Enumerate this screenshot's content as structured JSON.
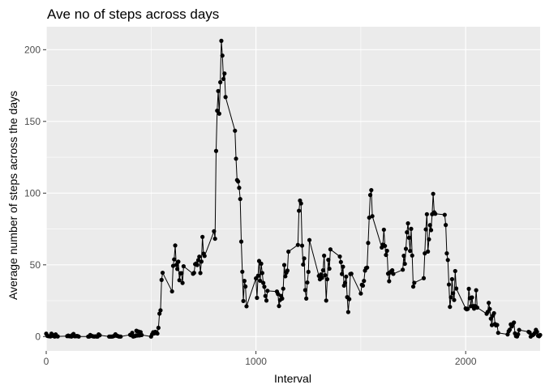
{
  "chart_data": {
    "type": "line",
    "title": "Ave no of steps across days",
    "xlabel": "Interval",
    "ylabel": "Average number of steps across the days",
    "xlim": [
      0,
      2355
    ],
    "ylim": [
      -10,
      216
    ],
    "x_ticks": [
      0,
      1000,
      2000
    ],
    "y_ticks": [
      0,
      50,
      100,
      150,
      200
    ],
    "grid": true,
    "markers": "points",
    "series": [
      {
        "color": "#000000",
        "points": [
          [
            0,
            2
          ],
          [
            5,
            0.5
          ],
          [
            10,
            0.3
          ],
          [
            15,
            0.2
          ],
          [
            20,
            0.1
          ],
          [
            25,
            2
          ],
          [
            30,
            0.5
          ],
          [
            35,
            0.9
          ],
          [
            40,
            0
          ],
          [
            45,
            1.5
          ],
          [
            50,
            0.3
          ],
          [
            55,
            0.1
          ],
          [
            100,
            0.3
          ],
          [
            105,
            0.7
          ],
          [
            110,
            0.2
          ],
          [
            115,
            0.3
          ],
          [
            120,
            0
          ],
          [
            125,
            1.1
          ],
          [
            130,
            1.8
          ],
          [
            135,
            0.2
          ],
          [
            140,
            0.2
          ],
          [
            145,
            0.4
          ],
          [
            150,
            0.3
          ],
          [
            155,
            0
          ],
          [
            200,
            0
          ],
          [
            205,
            0
          ],
          [
            210,
            1.1
          ],
          [
            215,
            0.5
          ],
          [
            220,
            0.3
          ],
          [
            225,
            0.1
          ],
          [
            230,
            0
          ],
          [
            235,
            0.2
          ],
          [
            240,
            0
          ],
          [
            245,
            0
          ],
          [
            250,
            1.5
          ],
          [
            255,
            0.9
          ],
          [
            300,
            0
          ],
          [
            305,
            0
          ],
          [
            310,
            0
          ],
          [
            315,
            0
          ],
          [
            320,
            0.2
          ],
          [
            325,
            0.6
          ],
          [
            330,
            1.6
          ],
          [
            335,
            0.6
          ],
          [
            340,
            0.5
          ],
          [
            345,
            0.1
          ],
          [
            350,
            0
          ],
          [
            355,
            0
          ],
          [
            400,
            1.2
          ],
          [
            405,
            0.9
          ],
          [
            410,
            2.6
          ],
          [
            415,
            0
          ],
          [
            420,
            0.3
          ],
          [
            425,
            0.4
          ],
          [
            430,
            4.1
          ],
          [
            435,
            0.7
          ],
          [
            440,
            3.5
          ],
          [
            445,
            0.8
          ],
          [
            450,
            3.1
          ],
          [
            455,
            1.1
          ],
          [
            500,
            0
          ],
          [
            505,
            1.6
          ],
          [
            510,
            3.0
          ],
          [
            515,
            2.2
          ],
          [
            520,
            3.3
          ],
          [
            525,
            3.0
          ],
          [
            530,
            2.1
          ],
          [
            535,
            6.1
          ],
          [
            540,
            16
          ],
          [
            545,
            18.3
          ],
          [
            550,
            39.5
          ],
          [
            555,
            44.5
          ],
          [
            600,
            31.5
          ],
          [
            605,
            49.3
          ],
          [
            610,
            53.8
          ],
          [
            615,
            63.5
          ],
          [
            620,
            50
          ],
          [
            625,
            47.1
          ],
          [
            630,
            52.2
          ],
          [
            635,
            39.3
          ],
          [
            640,
            44.1
          ],
          [
            645,
            44.2
          ],
          [
            650,
            37.4
          ],
          [
            655,
            49.0
          ],
          [
            700,
            43.8
          ],
          [
            705,
            44.4
          ],
          [
            710,
            50.5
          ],
          [
            715,
            51.0
          ],
          [
            720,
            49.9
          ],
          [
            725,
            53.3
          ],
          [
            730,
            55.7
          ],
          [
            735,
            44.3
          ],
          [
            740,
            52.3
          ],
          [
            745,
            69.5
          ],
          [
            750,
            57.8
          ],
          [
            755,
            56.2
          ],
          [
            800,
            73.4
          ],
          [
            805,
            68.2
          ],
          [
            810,
            129.4
          ],
          [
            815,
            157.5
          ],
          [
            820,
            171.2
          ],
          [
            825,
            155.4
          ],
          [
            830,
            177.3
          ],
          [
            835,
            206.2
          ],
          [
            840,
            195.9
          ],
          [
            845,
            179.6
          ],
          [
            850,
            183.4
          ],
          [
            855,
            167.0
          ],
          [
            900,
            143.5
          ],
          [
            905,
            124.0
          ],
          [
            910,
            109.1
          ],
          [
            915,
            108.1
          ],
          [
            920,
            103.7
          ],
          [
            925,
            95.9
          ],
          [
            930,
            66.2
          ],
          [
            935,
            45.2
          ],
          [
            940,
            24.8
          ],
          [
            945,
            38.8
          ],
          [
            950,
            34.9
          ],
          [
            955,
            21.1
          ],
          [
            1000,
            40.6
          ],
          [
            1005,
            27.0
          ],
          [
            1010,
            42.4
          ],
          [
            1015,
            52.7
          ],
          [
            1020,
            38.9
          ],
          [
            1025,
            50.8
          ],
          [
            1030,
            44.3
          ],
          [
            1035,
            37.4
          ],
          [
            1040,
            34.7
          ],
          [
            1045,
            28.3
          ],
          [
            1050,
            25.1
          ],
          [
            1055,
            31.9
          ],
          [
            1100,
            31.4
          ],
          [
            1105,
            29.7
          ],
          [
            1110,
            21.3
          ],
          [
            1115,
            25.5
          ],
          [
            1120,
            28.4
          ],
          [
            1125,
            26.5
          ],
          [
            1130,
            33.4
          ],
          [
            1135,
            49.9
          ],
          [
            1140,
            42.0
          ],
          [
            1145,
            44.6
          ],
          [
            1150,
            46.0
          ],
          [
            1155,
            59.2
          ],
          [
            1200,
            63.9
          ],
          [
            1205,
            87.7
          ],
          [
            1210,
            94.8
          ],
          [
            1215,
            92.8
          ],
          [
            1220,
            63.4
          ],
          [
            1225,
            50.2
          ],
          [
            1230,
            54.5
          ],
          [
            1235,
            32.4
          ],
          [
            1240,
            26.5
          ],
          [
            1245,
            37.7
          ],
          [
            1250,
            45.1
          ],
          [
            1255,
            67.3
          ],
          [
            1300,
            42.3
          ],
          [
            1305,
            39.9
          ],
          [
            1310,
            43.3
          ],
          [
            1315,
            40.98
          ],
          [
            1320,
            46.2
          ],
          [
            1325,
            56.4
          ],
          [
            1330,
            42.75
          ],
          [
            1335,
            25.1
          ],
          [
            1340,
            39.96
          ],
          [
            1345,
            53.5
          ],
          [
            1350,
            47.3
          ],
          [
            1355,
            60.8
          ],
          [
            1400,
            55.8
          ],
          [
            1405,
            51.96
          ],
          [
            1410,
            43.6
          ],
          [
            1415,
            48.7
          ],
          [
            1420,
            35.5
          ],
          [
            1425,
            37.5
          ],
          [
            1430,
            41.8
          ],
          [
            1435,
            27.5
          ],
          [
            1440,
            17.1
          ],
          [
            1445,
            26.1
          ],
          [
            1450,
            43.6
          ],
          [
            1455,
            43.8
          ],
          [
            1500,
            30.0
          ],
          [
            1505,
            36.1
          ],
          [
            1510,
            35.5
          ],
          [
            1515,
            38.8
          ],
          [
            1520,
            45.96
          ],
          [
            1525,
            47.75
          ],
          [
            1530,
            48.1
          ],
          [
            1535,
            65.3
          ],
          [
            1540,
            82.9
          ],
          [
            1545,
            98.7
          ],
          [
            1550,
            102.1
          ],
          [
            1555,
            83.96
          ],
          [
            1600,
            62.1
          ],
          [
            1605,
            64.1
          ],
          [
            1610,
            74.5
          ],
          [
            1615,
            63.2
          ],
          [
            1620,
            56.9
          ],
          [
            1625,
            59.8
          ],
          [
            1630,
            43.9
          ],
          [
            1635,
            38.6
          ],
          [
            1640,
            44.7
          ],
          [
            1645,
            45.5
          ],
          [
            1650,
            46.2
          ],
          [
            1655,
            43.7
          ],
          [
            1700,
            46.6
          ],
          [
            1705,
            56.3
          ],
          [
            1710,
            50.7
          ],
          [
            1715,
            61.2
          ],
          [
            1720,
            72.7
          ],
          [
            1725,
            78.9
          ],
          [
            1730,
            68.9
          ],
          [
            1735,
            59.7
          ],
          [
            1740,
            75.1
          ],
          [
            1745,
            56.5
          ],
          [
            1750,
            34.8
          ],
          [
            1755,
            37.5
          ],
          [
            1800,
            40.7
          ],
          [
            1805,
            58.0
          ],
          [
            1810,
            74.7
          ],
          [
            1815,
            85.3
          ],
          [
            1820,
            59.3
          ],
          [
            1825,
            67.8
          ],
          [
            1830,
            77.7
          ],
          [
            1835,
            74.2
          ],
          [
            1840,
            85.3
          ],
          [
            1845,
            99.5
          ],
          [
            1850,
            86.6
          ],
          [
            1855,
            85.6
          ],
          [
            1900,
            84.9
          ],
          [
            1905,
            77.8
          ],
          [
            1910,
            58.0
          ],
          [
            1915,
            53.4
          ],
          [
            1920,
            36.3
          ],
          [
            1925,
            20.7
          ],
          [
            1930,
            27.4
          ],
          [
            1935,
            40.0
          ],
          [
            1940,
            30.2
          ],
          [
            1945,
            25.5
          ],
          [
            1950,
            45.7
          ],
          [
            1955,
            33.5
          ],
          [
            2000,
            19.6
          ],
          [
            2005,
            19.0
          ],
          [
            2010,
            19.3
          ],
          [
            2015,
            33.3
          ],
          [
            2020,
            26.8
          ],
          [
            2025,
            21.2
          ],
          [
            2030,
            27.3
          ],
          [
            2035,
            21.3
          ],
          [
            2040,
            19.5
          ],
          [
            2045,
            21.3
          ],
          [
            2050,
            32.3
          ],
          [
            2055,
            20.2
          ],
          [
            2100,
            15.9
          ],
          [
            2105,
            17.2
          ],
          [
            2110,
            23.5
          ],
          [
            2115,
            19.2
          ],
          [
            2120,
            12.5
          ],
          [
            2125,
            8.0
          ],
          [
            2130,
            14.7
          ],
          [
            2135,
            16.3
          ],
          [
            2140,
            8.7
          ],
          [
            2145,
            7.8
          ],
          [
            2150,
            8.1
          ],
          [
            2155,
            2.6
          ],
          [
            2200,
            1.5
          ],
          [
            2205,
            3.7
          ],
          [
            2210,
            4.8
          ],
          [
            2215,
            8.5
          ],
          [
            2220,
            7.1
          ],
          [
            2225,
            8.7
          ],
          [
            2230,
            9.8
          ],
          [
            2235,
            2.2
          ],
          [
            2240,
            0.3
          ],
          [
            2245,
            0.1
          ],
          [
            2250,
            1.6
          ],
          [
            2255,
            4.6
          ],
          [
            2300,
            3.3
          ],
          [
            2305,
            2.8
          ],
          [
            2310,
            0
          ],
          [
            2315,
            0.8
          ],
          [
            2320,
            1.0
          ],
          [
            2325,
            1.6
          ],
          [
            2330,
            2.6
          ],
          [
            2335,
            4.7
          ],
          [
            2340,
            3.3
          ],
          [
            2345,
            0.6
          ],
          [
            2350,
            0.2
          ],
          [
            2355,
            1.1
          ]
        ]
      }
    ]
  }
}
